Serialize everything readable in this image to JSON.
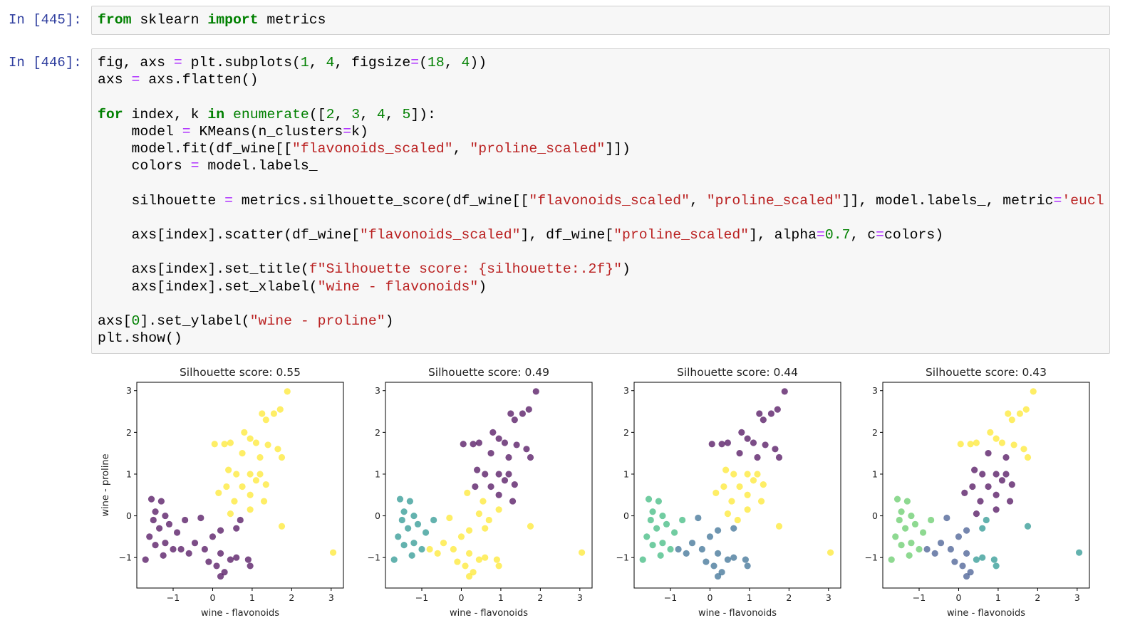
{
  "cells": [
    {
      "prompt": "In [445]:",
      "code": "from sklearn import metrics"
    },
    {
      "prompt": "In [446]:",
      "code": "fig, axs = plt.subplots(1, 4, figsize=(18, 4))\naxs = axs.flatten()\n\nfor index, k in enumerate([2, 3, 4, 5]):\n    model = KMeans(n_clusters=k)\n    model.fit(df_wine[[\"flavonoids_scaled\", \"proline_scaled\"]])\n    colors = model.labels_\n\n    silhouette = metrics.silhouette_score(df_wine[[\"flavonoids_scaled\", \"proline_scaled\"]], model.labels_, metric='eucl\n\n    axs[index].scatter(df_wine[\"flavonoids_scaled\"], df_wine[\"proline_scaled\"], alpha=0.7, c=colors)\n\n    axs[index].set_title(f\"Silhouette score: {silhouette:.2f}\")\n    axs[index].set_xlabel(\"wine - flavonoids\")\n\naxs[0].set_ylabel(\"wine - proline\")\nplt.show()"
    }
  ],
  "chart_data": [
    {
      "type": "scatter",
      "title": "Silhouette score: 0.55",
      "xlabel": "wine - flavonoids",
      "ylabel": "wine - proline",
      "xlim": [
        -1.92,
        3.31
      ],
      "ylim": [
        -1.73,
        3.2
      ],
      "xticks": [
        {
          "value": -1,
          "label": "−1"
        },
        0,
        1,
        2,
        3
      ],
      "yticks": [
        {
          "value": -1,
          "label": "−1"
        },
        0,
        1,
        2,
        3
      ],
      "opacity": 0.7,
      "series": [
        {
          "color": "#440154",
          "x": [
            0.7,
            0.2,
            0.6,
            -0.3,
            0.0,
            -0.45,
            -0.2,
            0.2,
            0.6,
            0.9,
            0.1,
            0.3,
            0.45,
            -0.6,
            -0.1,
            0.95,
            -0.8,
            0.2,
            -1.55,
            -1.3,
            -1.45,
            -1.2,
            -1.5,
            -1.35,
            -1.1,
            -1.6,
            -1.45,
            -1.2,
            -0.9,
            -1.0,
            -1.7,
            -1.25,
            -0.7
          ],
          "values": [
            -0.1,
            -0.35,
            -0.3,
            -0.05,
            -0.5,
            -0.65,
            -0.8,
            -0.9,
            -1.0,
            -1.05,
            -1.2,
            -1.35,
            -1.05,
            -0.9,
            -1.1,
            -1.2,
            -0.8,
            -1.45,
            0.4,
            0.35,
            0.1,
            0.0,
            -0.1,
            -0.3,
            -0.2,
            -0.5,
            -0.7,
            -0.65,
            -0.4,
            -0.8,
            -1.05,
            -0.95,
            -0.1
          ]
        },
        {
          "color": "#fde725",
          "x": [
            1.89,
            1.71,
            1.55,
            1.25,
            1.35,
            0.8,
            0.95,
            1.1,
            0.3,
            0.45,
            0.05,
            1.4,
            1.65,
            1.75,
            1.2,
            0.75,
            0.4,
            0.6,
            0.95,
            1.2,
            1.1,
            0.35,
            0.75,
            1.35,
            0.15,
            0.95,
            0.55,
            1.3,
            0.95,
            0.45,
            1.75,
            3.05
          ],
          "values": [
            2.98,
            2.55,
            2.45,
            2.45,
            2.3,
            2.0,
            1.85,
            1.75,
            1.72,
            1.75,
            1.72,
            1.7,
            1.6,
            1.4,
            1.4,
            1.5,
            1.1,
            1.0,
            1.0,
            1.0,
            0.85,
            0.7,
            0.7,
            0.75,
            0.55,
            0.5,
            0.35,
            0.35,
            0.15,
            0.05,
            -0.25,
            -0.88
          ]
        }
      ]
    },
    {
      "type": "scatter",
      "title": "Silhouette score: 0.49",
      "xlabel": "wine - flavonoids",
      "xlim": [
        -1.92,
        3.31
      ],
      "ylim": [
        -1.73,
        3.2
      ],
      "xticks": [
        {
          "value": -1,
          "label": "−1"
        },
        0,
        1,
        2,
        3
      ],
      "yticks": [
        {
          "value": -1,
          "label": "−1"
        },
        0,
        1,
        2,
        3
      ],
      "opacity": 0.7,
      "series": [
        {
          "color": "#440154",
          "x": [
            1.89,
            1.71,
            1.55,
            1.25,
            1.35,
            0.8,
            0.95,
            1.1,
            0.3,
            0.45,
            0.05,
            1.4,
            1.65,
            1.75,
            1.2,
            0.75,
            0.4,
            0.6,
            0.95,
            1.2,
            1.1,
            0.35,
            0.75,
            1.35,
            0.95,
            1.3
          ],
          "values": [
            2.98,
            2.55,
            2.45,
            2.45,
            2.3,
            2.0,
            1.85,
            1.75,
            1.72,
            1.75,
            1.72,
            1.7,
            1.6,
            1.4,
            1.4,
            1.5,
            1.1,
            1.0,
            1.0,
            1.0,
            0.85,
            0.7,
            0.7,
            0.75,
            0.5,
            0.35
          ]
        },
        {
          "color": "#21918c",
          "x": [
            -1.55,
            -1.3,
            -1.45,
            -1.2,
            -1.5,
            -1.35,
            -1.1,
            -1.6,
            -1.45,
            -1.2,
            -0.9,
            -1.0,
            -1.7,
            -1.25,
            -0.7
          ],
          "values": [
            0.4,
            0.35,
            0.1,
            0.0,
            -0.1,
            -0.3,
            -0.2,
            -0.5,
            -0.7,
            -0.65,
            -0.4,
            -0.8,
            -1.05,
            -0.95,
            -0.1
          ]
        },
        {
          "color": "#fde725",
          "x": [
            0.15,
            0.55,
            0.95,
            0.45,
            1.75,
            3.05,
            0.7,
            0.2,
            0.6,
            -0.3,
            0.0,
            -0.45,
            -0.2,
            0.2,
            0.6,
            0.9,
            0.1,
            0.3,
            0.45,
            -0.6,
            -0.1,
            0.95,
            -0.8,
            0.2
          ],
          "values": [
            0.55,
            0.35,
            0.15,
            0.05,
            -0.25,
            -0.88,
            -0.1,
            -0.35,
            -0.3,
            -0.05,
            -0.5,
            -0.65,
            -0.8,
            -0.9,
            -1.0,
            -1.05,
            -1.2,
            -1.35,
            -1.05,
            -0.9,
            -1.1,
            -1.2,
            -0.8,
            -1.45
          ]
        }
      ]
    },
    {
      "type": "scatter",
      "title": "Silhouette score: 0.44",
      "xlabel": "wine - flavonoids",
      "xlim": [
        -1.92,
        3.31
      ],
      "ylim": [
        -1.73,
        3.2
      ],
      "xticks": [
        {
          "value": -1,
          "label": "−1"
        },
        0,
        1,
        2,
        3
      ],
      "yticks": [
        {
          "value": -1,
          "label": "−1"
        },
        0,
        1,
        2,
        3
      ],
      "opacity": 0.7,
      "series": [
        {
          "color": "#440154",
          "x": [
            1.89,
            1.71,
            1.55,
            1.25,
            1.35,
            0.8,
            0.95,
            1.1,
            0.3,
            0.45,
            0.05,
            1.4,
            1.65,
            1.75,
            1.2,
            0.75
          ],
          "values": [
            2.98,
            2.55,
            2.45,
            2.45,
            2.3,
            2.0,
            1.85,
            1.75,
            1.72,
            1.75,
            1.72,
            1.7,
            1.6,
            1.4,
            1.4,
            1.5
          ]
        },
        {
          "color": "#31688e",
          "x": [
            0.2,
            0.6,
            -0.3,
            0.0,
            -0.45,
            -0.2,
            0.2,
            0.6,
            0.9,
            0.1,
            0.3,
            0.45,
            -0.6,
            -0.1,
            0.95,
            -0.8,
            0.2
          ],
          "values": [
            -0.35,
            -0.3,
            -0.05,
            -0.5,
            -0.65,
            -0.8,
            -0.9,
            -1.0,
            -1.05,
            -1.2,
            -1.35,
            -1.05,
            -0.9,
            -1.1,
            -1.2,
            -0.8,
            -1.45
          ]
        },
        {
          "color": "#35b779",
          "x": [
            -1.55,
            -1.3,
            -1.45,
            -1.2,
            -1.5,
            -1.35,
            -1.1,
            -1.6,
            -1.45,
            -1.2,
            -0.9,
            -1.0,
            -1.7,
            -1.25,
            -0.7
          ],
          "values": [
            0.4,
            0.35,
            0.1,
            0.0,
            -0.1,
            -0.3,
            -0.2,
            -0.5,
            -0.7,
            -0.65,
            -0.4,
            -0.8,
            -1.05,
            -0.95,
            -0.1
          ]
        },
        {
          "color": "#fde725",
          "x": [
            0.4,
            0.6,
            0.95,
            1.2,
            1.1,
            0.35,
            0.75,
            1.35,
            0.15,
            0.95,
            0.55,
            1.3,
            0.95,
            0.45,
            1.75,
            3.05,
            0.7
          ],
          "values": [
            1.1,
            1.0,
            1.0,
            1.0,
            0.85,
            0.7,
            0.7,
            0.75,
            0.55,
            0.5,
            0.35,
            0.35,
            0.15,
            0.05,
            -0.25,
            -0.88,
            -0.1
          ]
        }
      ]
    },
    {
      "type": "scatter",
      "title": "Silhouette score: 0.43",
      "xlabel": "wine - flavonoids",
      "xlim": [
        -1.92,
        3.31
      ],
      "ylim": [
        -1.73,
        3.2
      ],
      "xticks": [
        {
          "value": -1,
          "label": "−1"
        },
        0,
        1,
        2,
        3
      ],
      "yticks": [
        {
          "value": -1,
          "label": "−1"
        },
        0,
        1,
        2,
        3
      ],
      "opacity": 0.7,
      "series": [
        {
          "color": "#440154",
          "x": [
            1.2,
            0.75,
            0.4,
            0.6,
            0.95,
            1.2,
            1.1,
            0.35,
            0.75,
            1.35,
            0.15,
            0.95,
            0.55,
            1.3,
            0.95,
            0.45
          ],
          "values": [
            1.4,
            1.5,
            1.1,
            1.0,
            1.0,
            1.0,
            0.85,
            0.7,
            0.7,
            0.75,
            0.55,
            0.5,
            0.35,
            0.35,
            0.15,
            0.05
          ]
        },
        {
          "color": "#3b528b",
          "x": [
            0.2,
            -0.3,
            0.0,
            -0.45,
            -0.2,
            0.2,
            0.1,
            0.3,
            -0.6,
            -0.1,
            -0.8,
            0.2
          ],
          "values": [
            -0.35,
            -0.05,
            -0.5,
            -0.65,
            -0.8,
            -0.9,
            -1.2,
            -1.35,
            -0.9,
            -1.1,
            -0.8,
            -1.45
          ]
        },
        {
          "color": "#21918c",
          "x": [
            1.75,
            3.05,
            0.7,
            0.6,
            0.6,
            0.9,
            0.45,
            0.95
          ],
          "values": [
            -0.25,
            -0.88,
            -0.1,
            -0.3,
            -1.0,
            -1.05,
            -1.05,
            -1.2
          ]
        },
        {
          "color": "#5ec962",
          "x": [
            -1.55,
            -1.3,
            -1.45,
            -1.2,
            -1.5,
            -1.35,
            -1.1,
            -1.6,
            -1.45,
            -1.2,
            -0.9,
            -1.0,
            -1.7,
            -1.25,
            -0.7
          ],
          "values": [
            0.4,
            0.35,
            0.1,
            0.0,
            -0.1,
            -0.3,
            -0.2,
            -0.5,
            -0.7,
            -0.65,
            -0.4,
            -0.8,
            -1.05,
            -0.95,
            -0.1
          ]
        },
        {
          "color": "#fde725",
          "x": [
            1.89,
            1.71,
            1.55,
            1.25,
            1.35,
            0.8,
            0.95,
            1.1,
            0.3,
            0.45,
            0.05,
            1.4,
            1.65,
            1.75
          ],
          "values": [
            2.98,
            2.55,
            2.45,
            2.45,
            2.3,
            2.0,
            1.85,
            1.75,
            1.72,
            1.75,
            1.72,
            1.7,
            1.6,
            1.4
          ]
        }
      ]
    }
  ]
}
